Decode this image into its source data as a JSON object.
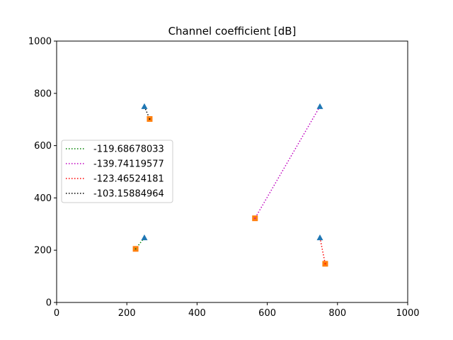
{
  "chart_data": {
    "type": "scatter",
    "title": "Channel coefficient [dB]",
    "xlabel": "",
    "ylabel": "",
    "xlim": [
      0,
      1000
    ],
    "ylim": [
      0,
      1000
    ],
    "xticks": [
      "0",
      "200",
      "400",
      "600",
      "800",
      "1000"
    ],
    "yticks": [
      "0",
      "200",
      "400",
      "600",
      "800",
      "1000"
    ],
    "grid": false,
    "legend_position": "center-left",
    "marker_colors": {
      "triangle": "#1f77b4",
      "square": "#ff7f0e"
    },
    "links": [
      {
        "name": "-119.68678033",
        "color": "#008000",
        "from": [
          250,
          248
        ],
        "to": [
          225,
          205
        ]
      },
      {
        "name": "-139.74119577",
        "color": "#bf00bf",
        "from": [
          750,
          750
        ],
        "to": [
          565,
          322
        ]
      },
      {
        "name": "-123.46524181",
        "color": "#ff0000",
        "from": [
          750,
          248
        ],
        "to": [
          765,
          148
        ]
      },
      {
        "name": "-103.15884964",
        "color": "#000000",
        "from": [
          250,
          750
        ],
        "to": [
          265,
          702
        ]
      }
    ]
  }
}
